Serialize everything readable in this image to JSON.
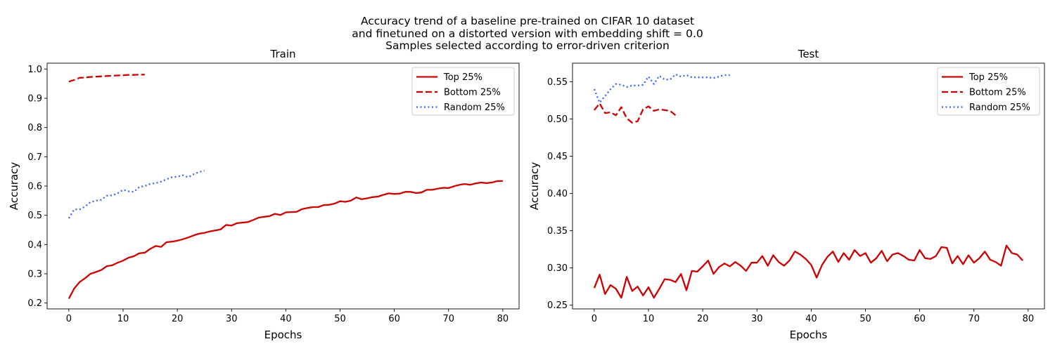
{
  "title_lines": [
    "Accuracy trend of a baseline pre-trained on CIFAR 10 dataset",
    "and finetuned on a distorted version with embedding shift = 0.0",
    "Samples selected according to error-driven criterion"
  ],
  "colors": {
    "top": "#cc0000",
    "bottom": "#cc0000",
    "random": "#3366ff"
  },
  "chart_data": [
    {
      "type": "line",
      "title": "Train",
      "xlabel": "Epochs",
      "ylabel": "Accuracy",
      "xlim": [
        -4,
        83
      ],
      "ylim": [
        0.18,
        1.02
      ],
      "xticks": [
        0,
        10,
        20,
        30,
        40,
        50,
        60,
        70,
        80
      ],
      "yticks": [
        0.2,
        0.3,
        0.4,
        0.5,
        0.6,
        0.7,
        0.8,
        0.9,
        1.0
      ],
      "ytick_labels": [
        "0.2",
        "0.3",
        "0.4",
        "0.5",
        "0.6",
        "0.7",
        "0.8",
        "0.9",
        "1.0"
      ],
      "legend_position": "top-right",
      "series": [
        {
          "name": "Top 25%",
          "style": "solid",
          "color_key": "top",
          "values": [
            0.215,
            0.25,
            0.272,
            0.285,
            0.3,
            0.306,
            0.313,
            0.326,
            0.329,
            0.338,
            0.345,
            0.355,
            0.36,
            0.37,
            0.372,
            0.385,
            0.395,
            0.392,
            0.408,
            0.41,
            0.413,
            0.418,
            0.424,
            0.431,
            0.437,
            0.44,
            0.445,
            0.448,
            0.452,
            0.467,
            0.465,
            0.473,
            0.475,
            0.477,
            0.484,
            0.492,
            0.495,
            0.497,
            0.505,
            0.501,
            0.51,
            0.511,
            0.512,
            0.521,
            0.525,
            0.528,
            0.528,
            0.535,
            0.536,
            0.54,
            0.548,
            0.546,
            0.55,
            0.561,
            0.555,
            0.558,
            0.562,
            0.564,
            0.57,
            0.575,
            0.573,
            0.574,
            0.58,
            0.58,
            0.576,
            0.578,
            0.587,
            0.587,
            0.591,
            0.594,
            0.593,
            0.599,
            0.604,
            0.607,
            0.604,
            0.609,
            0.612,
            0.61,
            0.612,
            0.617,
            0.617
          ]
        },
        {
          "name": "Bottom 25%",
          "style": "dashed",
          "color_key": "bottom",
          "values": [
            0.957,
            0.963,
            0.97,
            0.971,
            0.973,
            0.974,
            0.975,
            0.976,
            0.977,
            0.978,
            0.979,
            0.98,
            0.98,
            0.981,
            0.981
          ]
        },
        {
          "name": "Random 25%",
          "style": "dotted",
          "color_key": "random",
          "values": [
            0.49,
            0.52,
            0.52,
            0.53,
            0.545,
            0.55,
            0.553,
            0.567,
            0.568,
            0.575,
            0.587,
            0.582,
            0.58,
            0.597,
            0.6,
            0.607,
            0.61,
            0.615,
            0.623,
            0.63,
            0.632,
            0.637,
            0.63,
            0.64,
            0.648,
            0.652
          ]
        }
      ]
    },
    {
      "type": "line",
      "title": "Test",
      "xlabel": "Epochs",
      "ylabel": "Accuracy",
      "xlim": [
        -4,
        83
      ],
      "ylim": [
        0.245,
        0.575
      ],
      "xticks": [
        0,
        10,
        20,
        30,
        40,
        50,
        60,
        70,
        80
      ],
      "yticks": [
        0.25,
        0.3,
        0.35,
        0.4,
        0.45,
        0.5,
        0.55
      ],
      "ytick_labels": [
        "0.25",
        "0.30",
        "0.35",
        "0.40",
        "0.45",
        "0.50",
        "0.55"
      ],
      "legend_position": "top-right",
      "series": [
        {
          "name": "Top 25%",
          "style": "solid",
          "color_key": "top",
          "values": [
            0.273,
            0.291,
            0.265,
            0.277,
            0.272,
            0.26,
            0.288,
            0.269,
            0.275,
            0.263,
            0.274,
            0.26,
            0.272,
            0.285,
            0.284,
            0.281,
            0.292,
            0.27,
            0.296,
            0.295,
            0.302,
            0.31,
            0.292,
            0.301,
            0.306,
            0.302,
            0.308,
            0.303,
            0.296,
            0.307,
            0.307,
            0.316,
            0.303,
            0.317,
            0.308,
            0.303,
            0.31,
            0.322,
            0.318,
            0.312,
            0.304,
            0.287,
            0.304,
            0.315,
            0.322,
            0.308,
            0.32,
            0.311,
            0.324,
            0.316,
            0.32,
            0.307,
            0.313,
            0.323,
            0.309,
            0.318,
            0.32,
            0.316,
            0.311,
            0.31,
            0.324,
            0.313,
            0.312,
            0.316,
            0.328,
            0.327,
            0.306,
            0.316,
            0.305,
            0.317,
            0.307,
            0.313,
            0.322,
            0.311,
            0.308,
            0.303,
            0.33,
            0.32,
            0.318,
            0.31
          ]
        },
        {
          "name": "Bottom 25%",
          "style": "dashed",
          "color_key": "bottom",
          "values": [
            0.512,
            0.521,
            0.508,
            0.509,
            0.505,
            0.516,
            0.501,
            0.495,
            0.497,
            0.513,
            0.517,
            0.511,
            0.513,
            0.512,
            0.511,
            0.505
          ]
        },
        {
          "name": "Random 25%",
          "style": "dotted",
          "color_key": "random",
          "values": [
            0.54,
            0.522,
            0.531,
            0.54,
            0.547,
            0.546,
            0.543,
            0.545,
            0.545,
            0.546,
            0.557,
            0.547,
            0.558,
            0.553,
            0.553,
            0.56,
            0.557,
            0.559,
            0.556,
            0.556,
            0.556,
            0.556,
            0.555,
            0.557,
            0.559,
            0.559
          ]
        }
      ]
    }
  ]
}
